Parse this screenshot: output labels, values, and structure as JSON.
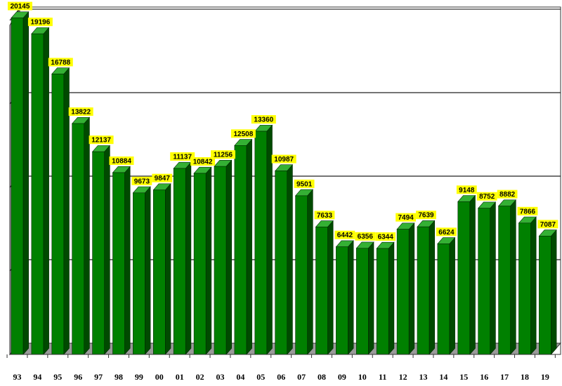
{
  "chart_data": {
    "type": "bar",
    "categories": [
      "93",
      "94",
      "95",
      "96",
      "97",
      "98",
      "99",
      "00",
      "01",
      "02",
      "03",
      "04",
      "05",
      "06",
      "07",
      "08",
      "09",
      "10",
      "11",
      "12",
      "13",
      "14",
      "15",
      "16",
      "17",
      "18",
      "19"
    ],
    "values": [
      20145,
      19196,
      16788,
      13822,
      12137,
      10884,
      9673,
      9847,
      11137,
      10842,
      11256,
      12508,
      13360,
      10987,
      9501,
      7633,
      6442,
      6356,
      6344,
      7494,
      7639,
      6624,
      9148,
      8752,
      8882,
      7866,
      7087
    ],
    "data_labels": [
      "20145",
      "19196",
      "16788",
      "13822",
      "12137",
      "10884",
      "9673",
      "9847",
      "11137",
      "10842",
      "11256",
      "12508",
      "13360",
      "10987",
      "9501",
      "7633",
      "6442",
      "6356",
      "6344",
      "7494",
      "7639",
      "6624",
      "9148",
      "8752",
      "8882",
      "7866",
      "7087"
    ],
    "title": "",
    "xlabel": "",
    "ylabel": "",
    "ylim": [
      0,
      20800
    ],
    "grid": true,
    "legend": "none",
    "colors": {
      "bar_front": "#008000",
      "bar_top": "#34b034",
      "bar_side": "#004a00",
      "label_bg": "#ffff00",
      "wall": "#ffffff",
      "gridline": "#222222",
      "floor": "#9a9a9a",
      "wall_side": "#a0a0a0"
    }
  }
}
